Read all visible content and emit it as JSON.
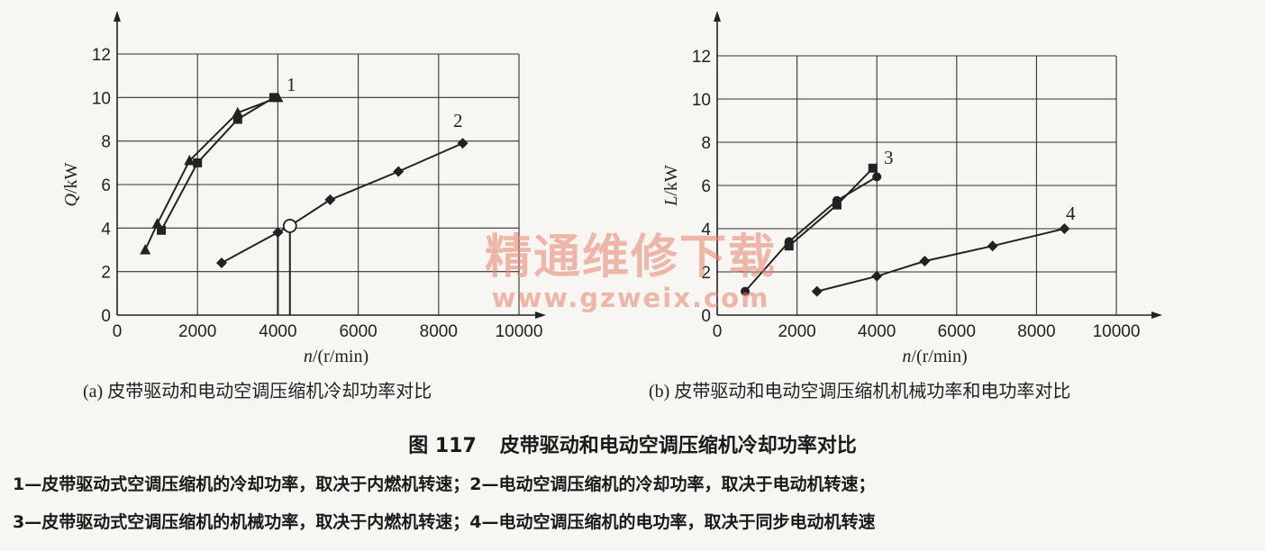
{
  "chart_data": [
    {
      "id": "a",
      "type": "line",
      "subcaption": "(a) 皮带驱动和电动空调压缩机冷却功率对比",
      "xlabel_var": "n",
      "xlabel_unit": "/(r/min)",
      "ylabel_var": "Q",
      "ylabel_unit": "/kW",
      "xlim": [
        0,
        10000
      ],
      "ylim": [
        0,
        12
      ],
      "xticks": [
        "0",
        "2000",
        "4000",
        "6000",
        "8000",
        "10000"
      ],
      "yticks": [
        "0",
        "2",
        "4",
        "6",
        "8",
        "10",
        "12"
      ],
      "grid": true,
      "series": [
        {
          "name": "1",
          "marker": "triangle",
          "points": [
            [
              700,
              3.0
            ],
            [
              1000,
              4.2
            ],
            [
              1800,
              7.1
            ],
            [
              3000,
              9.3
            ],
            [
              4000,
              10.0
            ]
          ]
        },
        {
          "name": "",
          "marker": "square",
          "points": [
            [
              1100,
              3.9
            ],
            [
              2000,
              7.0
            ],
            [
              3000,
              9.0
            ],
            [
              3900,
              10.0
            ]
          ]
        },
        {
          "name": "2",
          "marker": "diamond",
          "points": [
            [
              2600,
              2.4
            ],
            [
              4000,
              3.8
            ],
            [
              4300,
              4.1
            ],
            [
              5300,
              5.3
            ],
            [
              7000,
              6.6
            ],
            [
              8600,
              7.9
            ]
          ]
        }
      ],
      "highlight_points": [
        {
          "marker": "open-circle",
          "x": 4300,
          "y": 4.1
        }
      ],
      "reference_lines": [
        {
          "x": 4000,
          "y_from": 0,
          "y_to": 3.8
        },
        {
          "x": 4300,
          "y_from": 0,
          "y_to": 4.1
        }
      ]
    },
    {
      "id": "b",
      "type": "line",
      "subcaption": "(b) 皮带驱动和电动空调压缩机机械功率和电功率对比",
      "xlabel_var": "n",
      "xlabel_unit": "/(r/min)",
      "ylabel_var": "L",
      "ylabel_unit": "/kW",
      "xlim": [
        0,
        10000
      ],
      "ylim": [
        0,
        12
      ],
      "xticks": [
        "0",
        "2000",
        "4000",
        "6000",
        "8000",
        "10000"
      ],
      "yticks": [
        "0",
        "2",
        "4",
        "6",
        "8",
        "10",
        "12"
      ],
      "grid": true,
      "series": [
        {
          "name": "3",
          "marker": "circle",
          "points": [
            [
              700,
              1.1
            ],
            [
              1800,
              3.4
            ],
            [
              3000,
              5.3
            ],
            [
              4000,
              6.4
            ]
          ]
        },
        {
          "name": "",
          "marker": "square",
          "points": [
            [
              1800,
              3.2
            ],
            [
              3000,
              5.1
            ],
            [
              3900,
              6.8
            ]
          ]
        },
        {
          "name": "4",
          "marker": "diamond",
          "points": [
            [
              2500,
              1.1
            ],
            [
              4000,
              1.8
            ],
            [
              5200,
              2.5
            ],
            [
              6900,
              3.2
            ],
            [
              8700,
              4.0
            ]
          ]
        }
      ]
    }
  ],
  "figure": {
    "number": "图 117",
    "title": "皮带驱动和电动空调压缩机冷却功率对比"
  },
  "legend_text": {
    "line1": "1—皮带驱动式空调压缩机的冷却功率，取决于内燃机转速；2—电动空调压缩机的冷却功率，取决于电动机转速；",
    "line2": "3—皮带驱动式空调压缩机的机械功率，取决于内燃机转速；4—电动空调压缩机的电功率，取决于同步电动机转速"
  },
  "watermark": {
    "text": "精通维修下载",
    "url": "www.gzweix.com"
  }
}
